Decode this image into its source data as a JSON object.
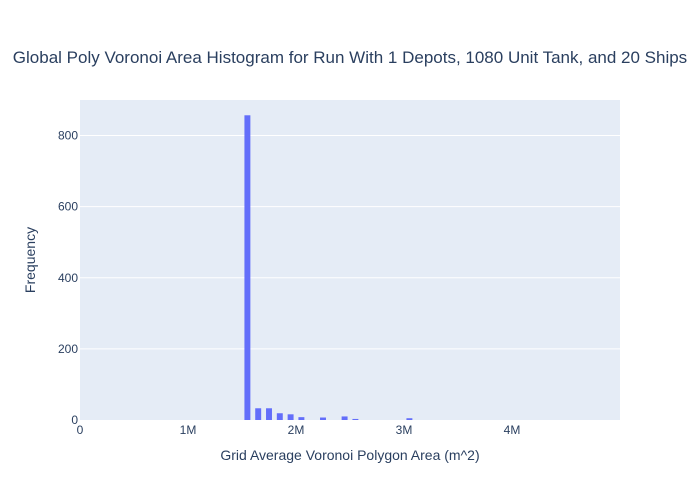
{
  "chart_data": {
    "type": "bar",
    "title": "Global Poly Voronoi Area Histogram for Run With 1 Depots, 1080 Unit Tank, and 20 Ships",
    "xlabel": "Grid Average Voronoi Polygon Area (m^2)",
    "ylabel": "Frequency",
    "xlim": [
      0,
      5000000
    ],
    "ylim": [
      0,
      900
    ],
    "x_ticks": [
      {
        "value": 0,
        "label": "0"
      },
      {
        "value": 1000000,
        "label": "1M"
      },
      {
        "value": 2000000,
        "label": "2M"
      },
      {
        "value": 3000000,
        "label": "3M"
      },
      {
        "value": 4000000,
        "label": "4M"
      }
    ],
    "y_ticks": [
      {
        "value": 0,
        "label": "0"
      },
      {
        "value": 200,
        "label": "200"
      },
      {
        "value": 400,
        "label": "400"
      },
      {
        "value": 600,
        "label": "600"
      },
      {
        "value": 800,
        "label": "800"
      }
    ],
    "bin_width": 100000,
    "bins": [
      {
        "start": 1500000,
        "count": 857
      },
      {
        "start": 1600000,
        "count": 33
      },
      {
        "start": 1700000,
        "count": 33
      },
      {
        "start": 1800000,
        "count": 19
      },
      {
        "start": 1900000,
        "count": 16
      },
      {
        "start": 2000000,
        "count": 8
      },
      {
        "start": 2100000,
        "count": 0
      },
      {
        "start": 2200000,
        "count": 7
      },
      {
        "start": 2300000,
        "count": 0
      },
      {
        "start": 2400000,
        "count": 10
      },
      {
        "start": 2500000,
        "count": 3
      },
      {
        "start": 2600000,
        "count": 0
      },
      {
        "start": 2700000,
        "count": 0
      },
      {
        "start": 2800000,
        "count": 0
      },
      {
        "start": 2900000,
        "count": 0
      },
      {
        "start": 3000000,
        "count": 5
      }
    ],
    "grid": true,
    "colors": {
      "bar": "#636efa",
      "plot_background": "#e5ecf6",
      "grid": "#ffffff",
      "text": "#2a3f5f"
    }
  }
}
